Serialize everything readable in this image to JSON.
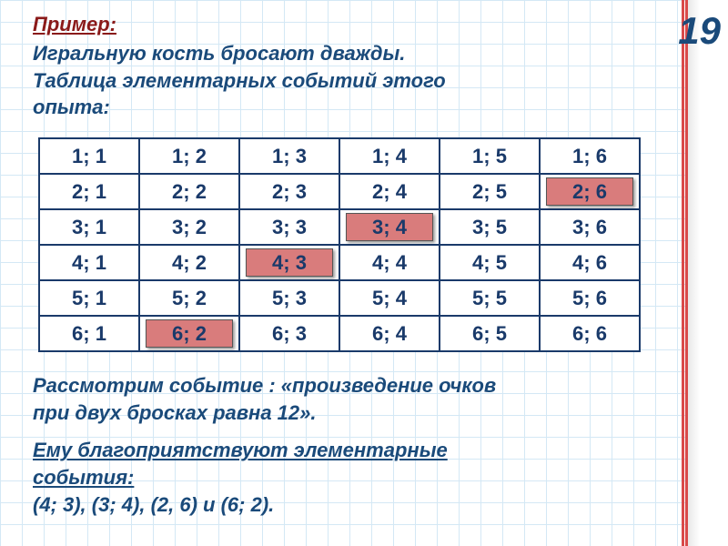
{
  "page_number": "19",
  "heading_label": "Пример:",
  "heading_text_l1": "Игральную кость бросают дважды.",
  "heading_text_l2": "Таблица элементарных событий этого",
  "heading_text_l3": "опыта:",
  "table": {
    "rows": [
      [
        {
          "v": "1; 1"
        },
        {
          "v": "1; 2"
        },
        {
          "v": "1; 3"
        },
        {
          "v": "1; 4"
        },
        {
          "v": "1; 5"
        },
        {
          "v": "1; 6"
        }
      ],
      [
        {
          "v": "2; 1"
        },
        {
          "v": "2; 2"
        },
        {
          "v": "2; 3"
        },
        {
          "v": "2; 4"
        },
        {
          "v": "2; 5"
        },
        {
          "v": "2; 6",
          "hl": true
        }
      ],
      [
        {
          "v": "3; 1"
        },
        {
          "v": "3; 2"
        },
        {
          "v": "3; 3"
        },
        {
          "v": "3; 4",
          "hl": true
        },
        {
          "v": "3; 5"
        },
        {
          "v": "3; 6"
        }
      ],
      [
        {
          "v": "4; 1"
        },
        {
          "v": "4; 2"
        },
        {
          "v": "4; 3",
          "hl": true
        },
        {
          "v": "4; 4"
        },
        {
          "v": "4; 5"
        },
        {
          "v": "4; 6"
        }
      ],
      [
        {
          "v": "5; 1"
        },
        {
          "v": "5; 2"
        },
        {
          "v": "5; 3"
        },
        {
          "v": "5; 4"
        },
        {
          "v": "5; 5"
        },
        {
          "v": "5; 6"
        }
      ],
      [
        {
          "v": "6; 1"
        },
        {
          "v": "6; 2",
          "hl": true
        },
        {
          "v": "6; 3"
        },
        {
          "v": "6; 4"
        },
        {
          "v": "6; 5"
        },
        {
          "v": "6; 6"
        }
      ]
    ],
    "highlight_color": "#d97c7c",
    "border_color": "#1a3a6a",
    "text_color": "#1a3a6a",
    "cell_fontsize": 22
  },
  "footer1_l1": "Рассмотрим  событие : «произведение очков",
  "footer1_l2": "при двух бросках равна 12».",
  "footer2a": "Ему благоприятствуют элементарные",
  "footer2b": "события:",
  "footer2c": "(4; 3), (3; 4), (2, 6) и (6; 2).",
  "colors": {
    "grid": "#d4e8f5",
    "margin_line": "#d94a4a",
    "accent_red": "#8a1a1a",
    "accent_blue": "#1a4a7a"
  }
}
